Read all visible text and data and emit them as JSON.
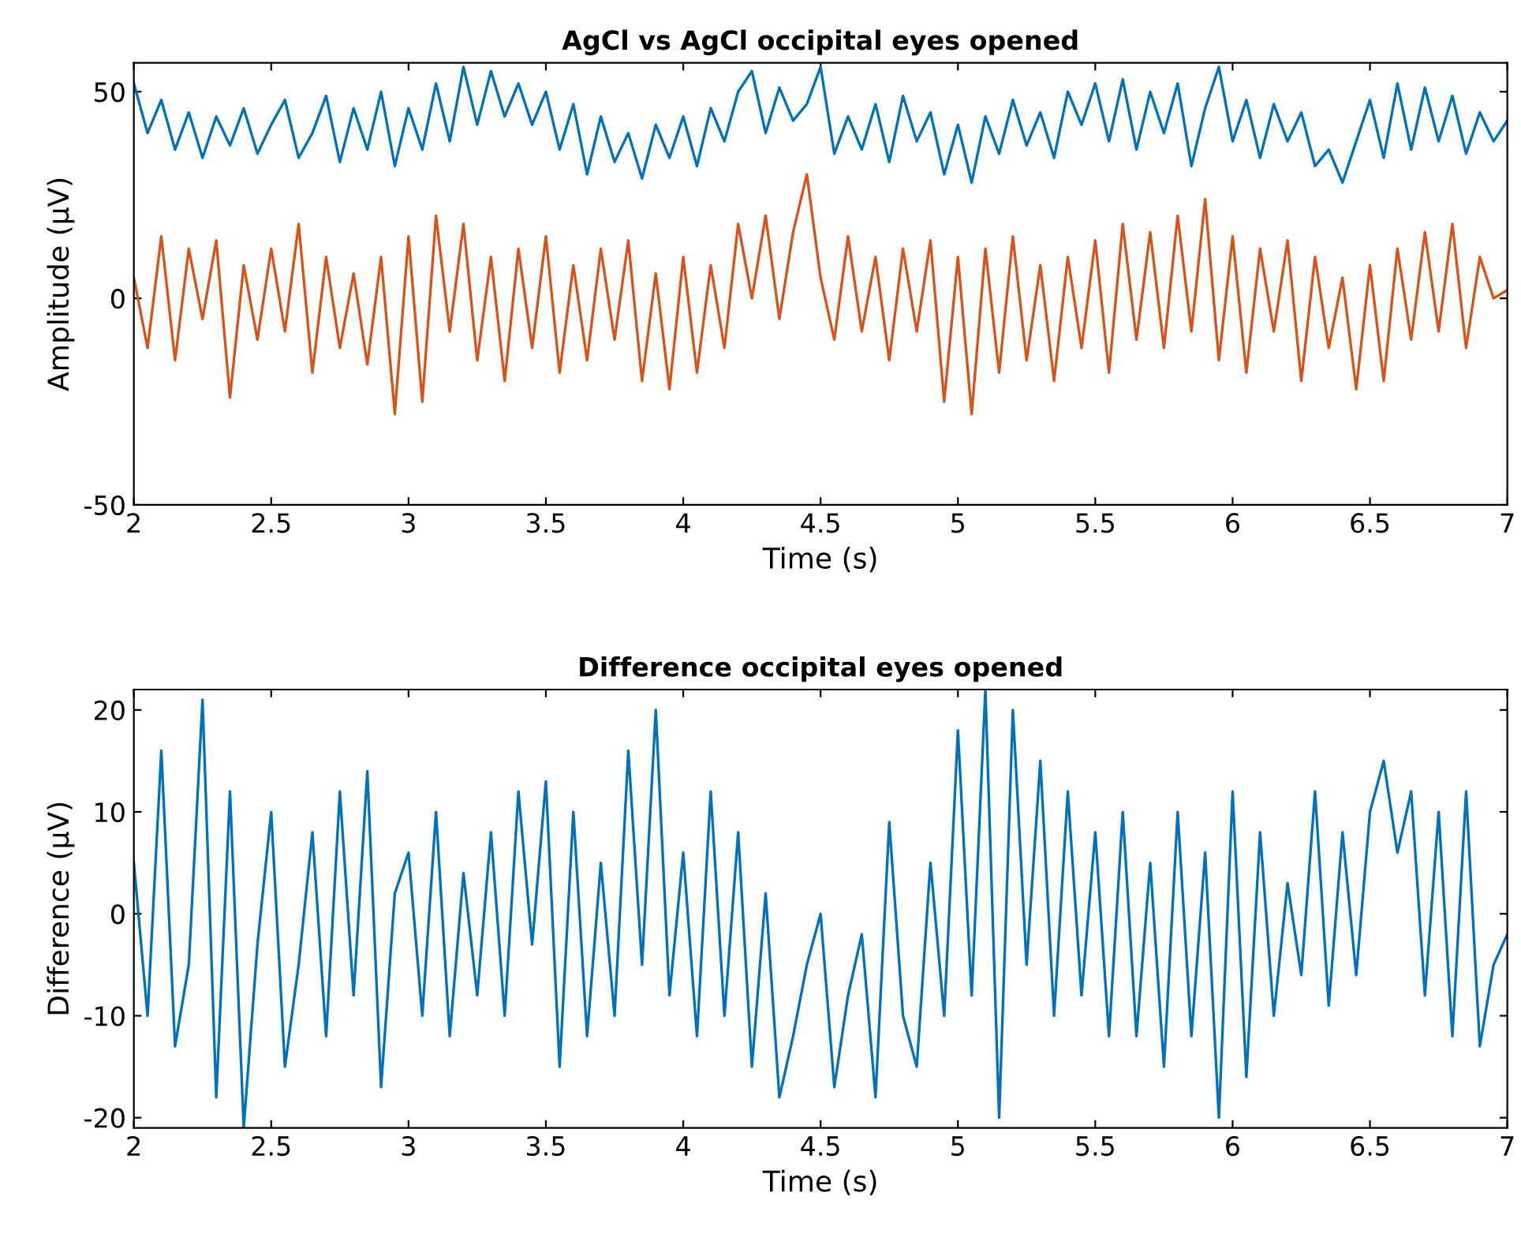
{
  "chart_data": [
    {
      "type": "line",
      "title": "AgCl vs AgCl occipital eyes opened",
      "xlabel": "Time (s)",
      "ylabel": "Amplitude (μV)",
      "xlim": [
        2,
        7
      ],
      "ylim": [
        -50,
        57
      ],
      "xticks": [
        2,
        2.5,
        3,
        3.5,
        4,
        4.5,
        5,
        5.5,
        6,
        6.5,
        7
      ],
      "yticks": [
        -50,
        0,
        50
      ],
      "x": [
        2.0,
        2.05,
        2.1,
        2.15,
        2.2,
        2.25,
        2.3,
        2.35,
        2.4,
        2.45,
        2.5,
        2.55,
        2.6,
        2.65,
        2.7,
        2.75,
        2.8,
        2.85,
        2.9,
        2.95,
        3.0,
        3.05,
        3.1,
        3.15,
        3.2,
        3.25,
        3.3,
        3.35,
        3.4,
        3.45,
        3.5,
        3.55,
        3.6,
        3.65,
        3.7,
        3.75,
        3.8,
        3.85,
        3.9,
        3.95,
        4.0,
        4.05,
        4.1,
        4.15,
        4.2,
        4.25,
        4.3,
        4.35,
        4.4,
        4.45,
        4.5,
        4.55,
        4.6,
        4.65,
        4.7,
        4.75,
        4.8,
        4.85,
        4.9,
        4.95,
        5.0,
        5.05,
        5.1,
        5.15,
        5.2,
        5.25,
        5.3,
        5.35,
        5.4,
        5.45,
        5.5,
        5.55,
        5.6,
        5.65,
        5.7,
        5.75,
        5.8,
        5.85,
        5.9,
        5.95,
        6.0,
        6.05,
        6.1,
        6.15,
        6.2,
        6.25,
        6.3,
        6.35,
        6.4,
        6.45,
        6.5,
        6.55,
        6.6,
        6.65,
        6.7,
        6.75,
        6.8,
        6.85,
        6.9,
        6.95,
        7.0
      ],
      "series": [
        {
          "color": "#0072bd",
          "values": [
            52,
            40,
            48,
            36,
            45,
            34,
            44,
            37,
            46,
            35,
            42,
            48,
            34,
            40,
            49,
            33,
            46,
            36,
            50,
            32,
            46,
            36,
            52,
            38,
            56,
            42,
            55,
            44,
            52,
            42,
            50,
            36,
            47,
            30,
            44,
            33,
            40,
            29,
            42,
            34,
            44,
            32,
            46,
            38,
            50,
            55,
            40,
            51,
            43,
            47,
            56,
            35,
            44,
            36,
            47,
            33,
            49,
            38,
            45,
            30,
            42,
            28,
            44,
            35,
            48,
            37,
            45,
            34,
            50,
            42,
            52,
            38,
            53,
            36,
            50,
            40,
            52,
            32,
            46,
            56,
            38,
            48,
            34,
            47,
            38,
            45,
            32,
            36,
            28,
            38,
            48,
            34,
            52,
            36,
            51,
            38,
            49,
            35,
            45,
            38,
            43
          ]
        },
        {
          "color": "#d95319",
          "values": [
            5,
            -12,
            15,
            -15,
            12,
            -5,
            14,
            -24,
            8,
            -10,
            12,
            -8,
            18,
            -18,
            10,
            -12,
            6,
            -16,
            10,
            -28,
            15,
            -25,
            20,
            -8,
            18,
            -15,
            10,
            -20,
            12,
            -12,
            15,
            -18,
            8,
            -15,
            12,
            -10,
            14,
            -20,
            6,
            -22,
            10,
            -18,
            8,
            -12,
            18,
            0,
            20,
            -5,
            16,
            30,
            5,
            -10,
            15,
            -8,
            10,
            -15,
            12,
            -8,
            14,
            -25,
            10,
            -28,
            12,
            -18,
            15,
            -15,
            8,
            -20,
            10,
            -12,
            14,
            -18,
            18,
            -10,
            16,
            -12,
            20,
            -8,
            24,
            -15,
            15,
            -18,
            12,
            -8,
            14,
            -20,
            10,
            -12,
            5,
            -22,
            8,
            -20,
            12,
            -10,
            16,
            -8,
            18,
            -12,
            10,
            0,
            2
          ]
        }
      ]
    },
    {
      "type": "line",
      "title": "Difference occipital eyes opened",
      "xlabel": "Time (s)",
      "ylabel": "Difference (μV)",
      "xlim": [
        2,
        7
      ],
      "ylim": [
        -21,
        22
      ],
      "xticks": [
        2,
        2.5,
        3,
        3.5,
        4,
        4.5,
        5,
        5.5,
        6,
        6.5,
        7
      ],
      "yticks": [
        -20,
        -10,
        0,
        10,
        20
      ],
      "x": [
        2.0,
        2.05,
        2.1,
        2.15,
        2.2,
        2.25,
        2.3,
        2.35,
        2.4,
        2.45,
        2.5,
        2.55,
        2.6,
        2.65,
        2.7,
        2.75,
        2.8,
        2.85,
        2.9,
        2.95,
        3.0,
        3.05,
        3.1,
        3.15,
        3.2,
        3.25,
        3.3,
        3.35,
        3.4,
        3.45,
        3.5,
        3.55,
        3.6,
        3.65,
        3.7,
        3.75,
        3.8,
        3.85,
        3.9,
        3.95,
        4.0,
        4.05,
        4.1,
        4.15,
        4.2,
        4.25,
        4.3,
        4.35,
        4.4,
        4.45,
        4.5,
        4.55,
        4.6,
        4.65,
        4.7,
        4.75,
        4.8,
        4.85,
        4.9,
        4.95,
        5.0,
        5.05,
        5.1,
        5.15,
        5.2,
        5.25,
        5.3,
        5.35,
        5.4,
        5.45,
        5.5,
        5.55,
        5.6,
        5.65,
        5.7,
        5.75,
        5.8,
        5.85,
        5.9,
        5.95,
        6.0,
        6.05,
        6.1,
        6.15,
        6.2,
        6.25,
        6.3,
        6.35,
        6.4,
        6.45,
        6.5,
        6.55,
        6.6,
        6.65,
        6.7,
        6.75,
        6.8,
        6.85,
        6.9,
        6.95,
        7.0
      ],
      "series": [
        {
          "color": "#0072bd",
          "values": [
            5,
            -10,
            16,
            -13,
            -5,
            21,
            -18,
            12,
            -21,
            -3,
            10,
            -15,
            -5,
            8,
            -12,
            12,
            -8,
            14,
            -17,
            2,
            6,
            -10,
            10,
            -12,
            4,
            -8,
            8,
            -10,
            12,
            -3,
            13,
            -15,
            10,
            -12,
            5,
            -10,
            16,
            -5,
            20,
            -8,
            6,
            -12,
            12,
            -10,
            8,
            -15,
            2,
            -18,
            -12,
            -5,
            0,
            -17,
            -8,
            -2,
            -18,
            9,
            -10,
            -15,
            5,
            -10,
            18,
            -8,
            22,
            -20,
            20,
            -5,
            15,
            -10,
            12,
            -8,
            8,
            -12,
            10,
            -12,
            5,
            -15,
            10,
            -12,
            6,
            -20,
            12,
            -16,
            8,
            -10,
            3,
            -6,
            12,
            -9,
            8,
            -6,
            10,
            15,
            6,
            12,
            -8,
            10,
            -12,
            12,
            -13,
            -5,
            -2
          ]
        }
      ]
    }
  ]
}
